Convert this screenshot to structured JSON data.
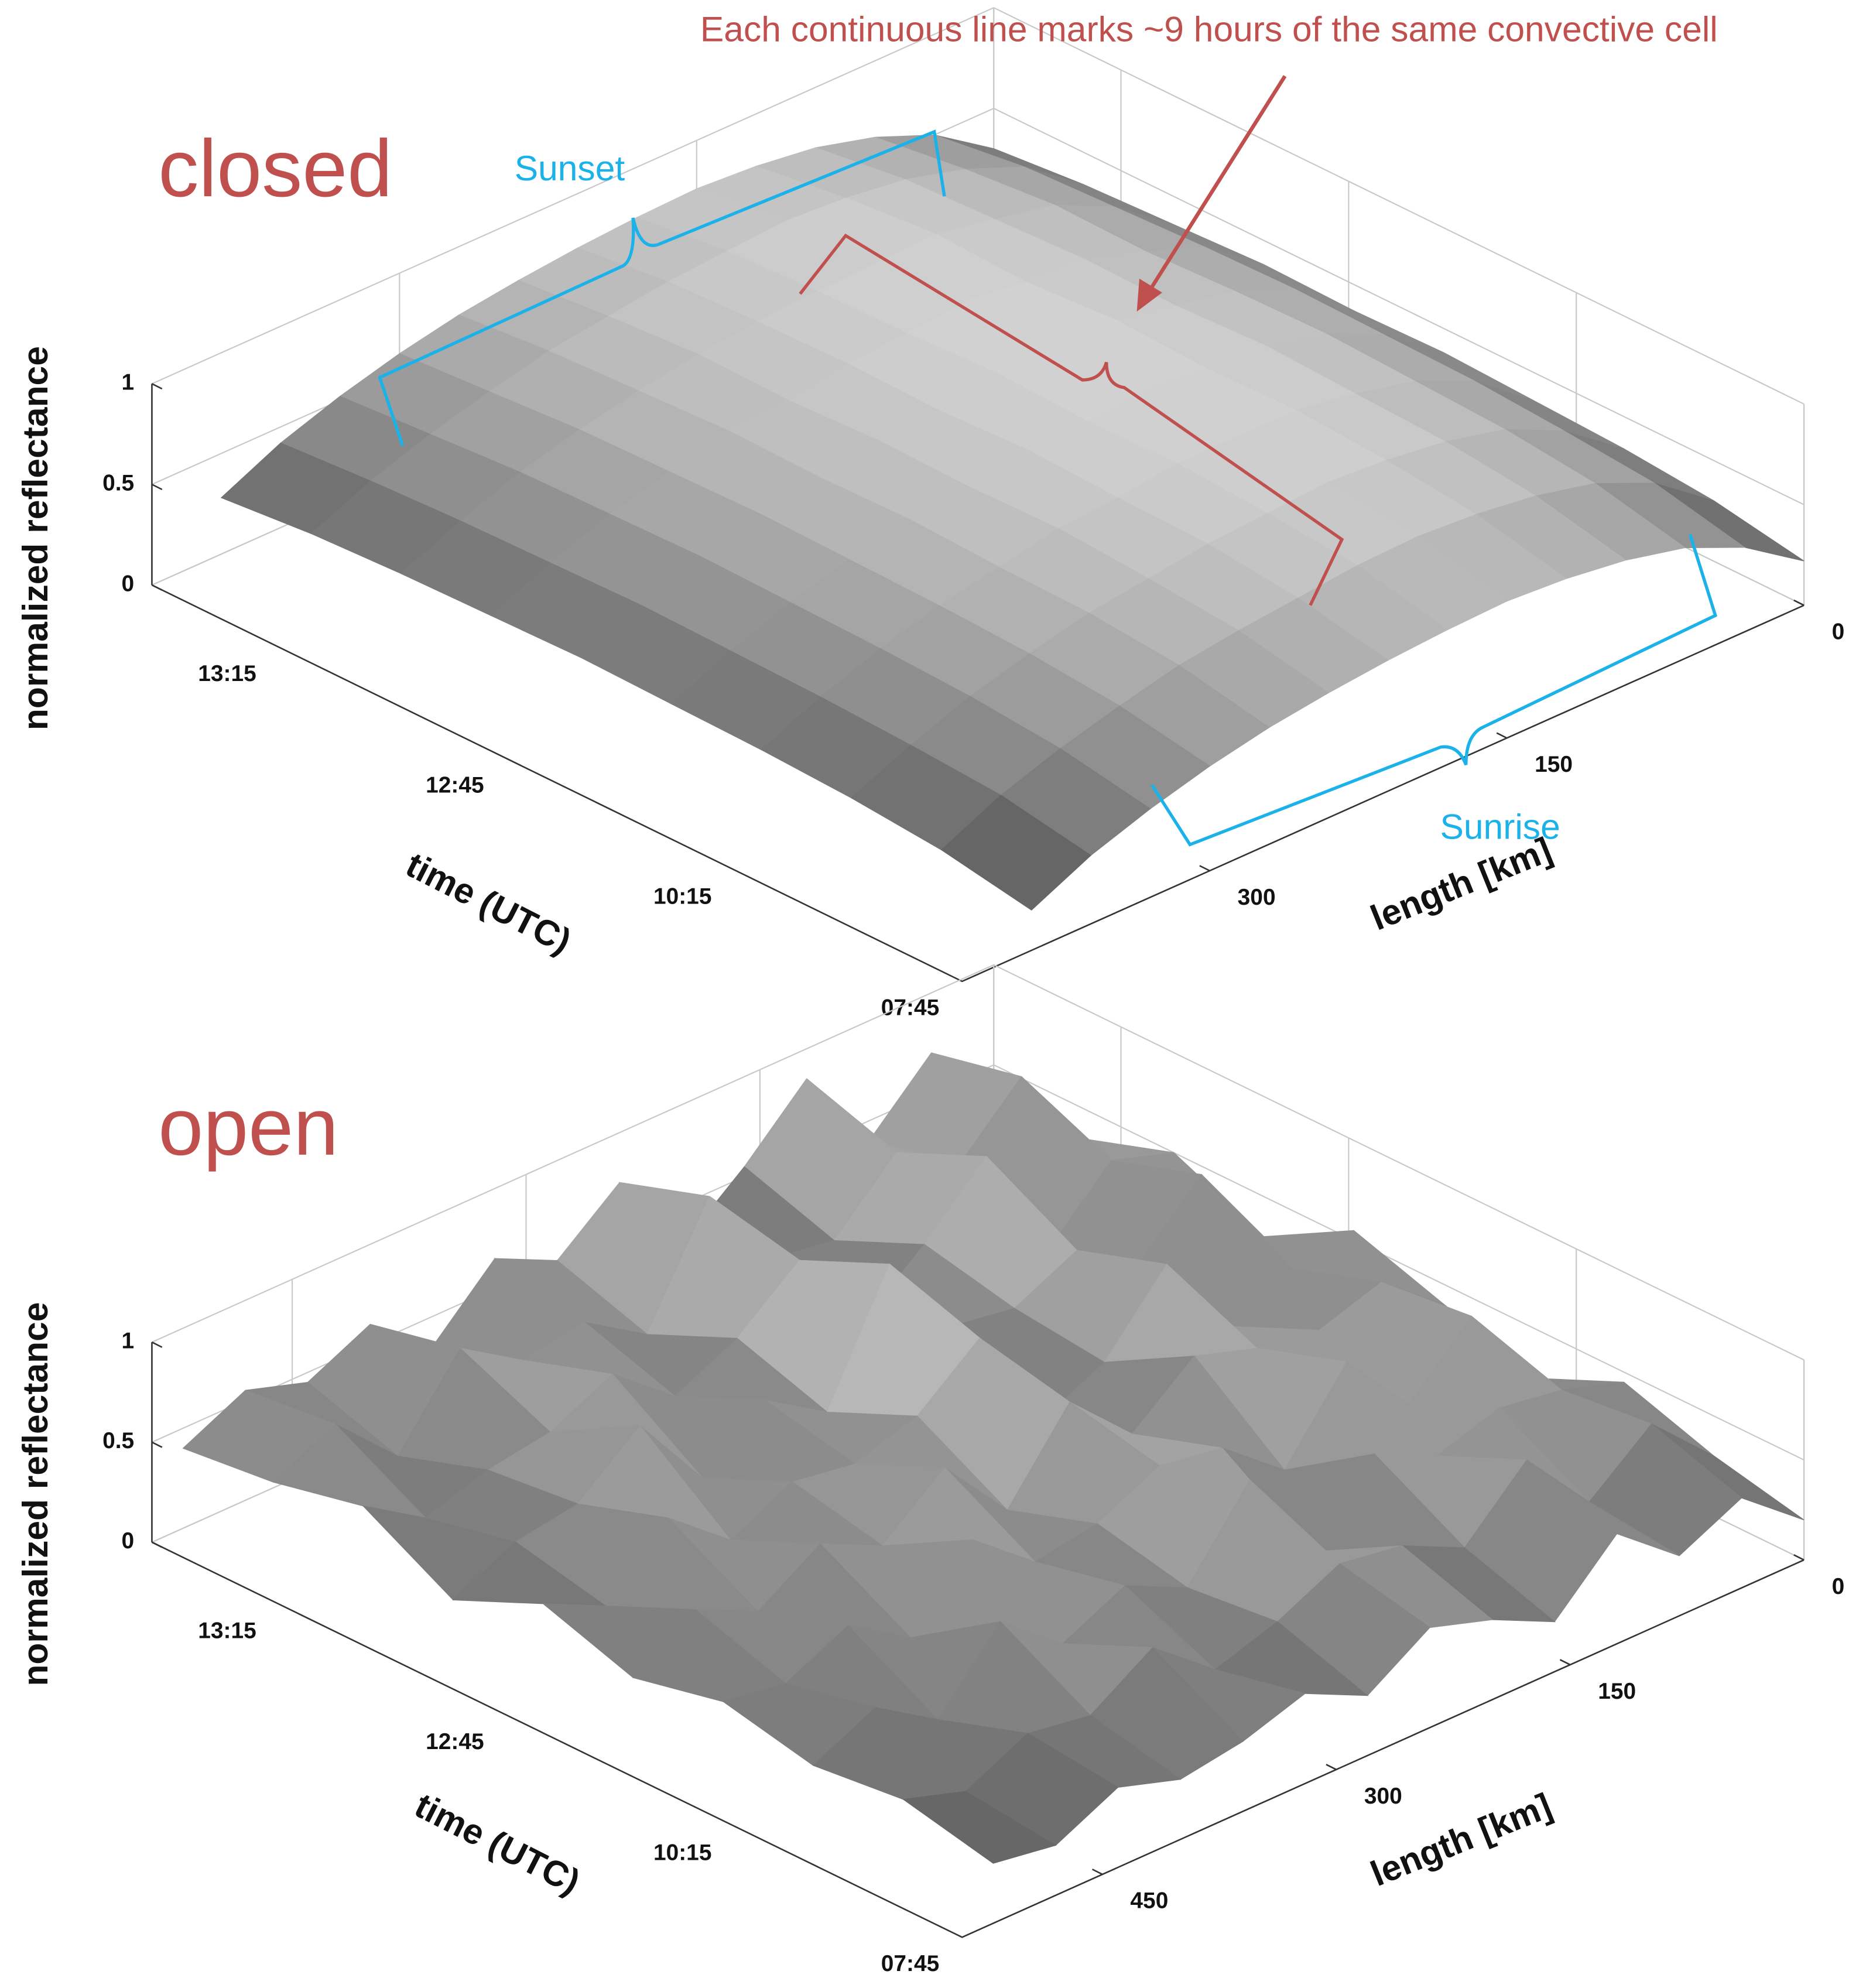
{
  "chart_data": [
    {
      "type": "surface",
      "title": "closed",
      "title_color": "#c0504d",
      "annotations": [
        {
          "text": "Each continuous line marks ~9 hours of the same convective cell",
          "color": "#c0504d"
        },
        {
          "text": "Sunset",
          "color": "#1ab2e8"
        },
        {
          "text": "Sunrise",
          "color": "#1ab2e8"
        }
      ],
      "xlabel": "length [km]",
      "ylabel": "time (UTC)",
      "zlabel": "normalized reflectance",
      "time_ticks": [
        "13:15",
        "12:45",
        "10:15",
        "07:45"
      ],
      "xlim": [
        0,
        425
      ],
      "xticks": [
        0,
        150,
        300
      ],
      "zlim": [
        0,
        1
      ],
      "zticks": [
        0,
        0.5,
        1
      ],
      "colormap": "gray",
      "grid": true,
      "x": [
        0,
        30,
        60,
        90,
        120,
        150,
        180,
        210,
        240,
        270,
        300,
        330,
        360,
        390
      ],
      "z": [
        [
          0.3,
          0.5,
          0.62,
          0.7,
          0.74,
          0.76,
          0.75,
          0.73,
          0.7,
          0.66,
          0.6,
          0.52,
          0.42,
          0.28
        ],
        [
          0.34,
          0.56,
          0.68,
          0.76,
          0.8,
          0.82,
          0.8,
          0.78,
          0.74,
          0.7,
          0.63,
          0.55,
          0.45,
          0.32
        ],
        [
          0.36,
          0.58,
          0.72,
          0.78,
          0.84,
          0.83,
          0.82,
          0.8,
          0.77,
          0.72,
          0.66,
          0.58,
          0.47,
          0.34
        ],
        [
          0.38,
          0.6,
          0.71,
          0.8,
          0.82,
          0.86,
          0.83,
          0.81,
          0.76,
          0.74,
          0.67,
          0.59,
          0.48,
          0.35
        ],
        [
          0.37,
          0.61,
          0.73,
          0.79,
          0.85,
          0.84,
          0.85,
          0.8,
          0.78,
          0.73,
          0.68,
          0.6,
          0.49,
          0.36
        ],
        [
          0.38,
          0.6,
          0.74,
          0.81,
          0.83,
          0.86,
          0.83,
          0.82,
          0.77,
          0.74,
          0.67,
          0.59,
          0.48,
          0.35
        ],
        [
          0.36,
          0.59,
          0.72,
          0.79,
          0.84,
          0.84,
          0.84,
          0.8,
          0.78,
          0.72,
          0.66,
          0.58,
          0.47,
          0.34
        ],
        [
          0.34,
          0.56,
          0.7,
          0.77,
          0.81,
          0.83,
          0.81,
          0.79,
          0.75,
          0.71,
          0.64,
          0.56,
          0.45,
          0.32
        ],
        [
          0.3,
          0.52,
          0.65,
          0.72,
          0.76,
          0.78,
          0.77,
          0.74,
          0.71,
          0.67,
          0.6,
          0.52,
          0.42,
          0.28
        ],
        [
          0.22,
          0.42,
          0.55,
          0.62,
          0.66,
          0.68,
          0.67,
          0.65,
          0.62,
          0.58,
          0.52,
          0.44,
          0.34,
          0.2
        ]
      ]
    },
    {
      "type": "surface",
      "title": "open",
      "title_color": "#c0504d",
      "xlabel": "length [km]",
      "ylabel": "time (UTC)",
      "zlabel": "normalized reflectance",
      "time_ticks": [
        "13:15",
        "12:45",
        "10:15",
        "07:45"
      ],
      "xlim": [
        0,
        540
      ],
      "xticks": [
        0,
        150,
        300,
        450
      ],
      "zlim": [
        0,
        1
      ],
      "zticks": [
        0,
        0.5,
        1
      ],
      "colormap": "gray",
      "grid": true,
      "x": [
        0,
        40,
        80,
        120,
        160,
        200,
        240,
        280,
        320,
        360,
        400,
        440,
        480,
        520
      ],
      "z": [
        [
          0.45,
          0.7,
          0.4,
          0.85,
          0.55,
          0.3,
          0.75,
          0.5,
          0.65,
          0.35,
          0.6,
          0.45,
          0.55,
          0.4
        ],
        [
          0.35,
          0.8,
          0.5,
          0.7,
          0.4,
          0.45,
          0.9,
          0.35,
          0.55,
          0.5,
          0.7,
          0.3,
          0.6,
          0.45
        ],
        [
          0.5,
          0.6,
          0.3,
          0.9,
          0.6,
          0.35,
          0.8,
          0.55,
          0.4,
          0.65,
          0.5,
          0.45,
          0.35,
          0.55
        ],
        [
          0.3,
          0.75,
          0.45,
          0.65,
          0.5,
          0.55,
          1.0,
          0.4,
          0.6,
          0.35,
          0.75,
          0.5,
          0.45,
          0.3
        ],
        [
          0.55,
          0.5,
          0.35,
          0.8,
          0.45,
          0.3,
          0.85,
          0.6,
          0.5,
          0.55,
          0.4,
          0.65,
          0.35,
          0.5
        ],
        [
          0.4,
          0.65,
          0.55,
          0.6,
          0.7,
          0.45,
          0.75,
          0.35,
          0.7,
          0.45,
          0.6,
          0.4,
          0.55,
          0.35
        ],
        [
          0.25,
          0.7,
          0.4,
          0.75,
          0.35,
          0.6,
          0.65,
          0.5,
          0.45,
          0.7,
          0.35,
          0.55,
          0.4,
          0.45
        ],
        [
          0.45,
          0.55,
          0.6,
          0.5,
          0.65,
          0.3,
          0.8,
          0.4,
          0.55,
          0.4,
          0.65,
          0.3,
          0.5,
          0.35
        ],
        [
          0.3,
          0.6,
          0.35,
          0.7,
          0.4,
          0.55,
          0.6,
          0.45,
          0.35,
          0.6,
          0.4,
          0.45,
          0.3,
          0.4
        ],
        [
          0.2,
          0.45,
          0.3,
          0.55,
          0.25,
          0.4,
          0.5,
          0.3,
          0.45,
          0.35,
          0.3,
          0.4,
          0.25,
          0.3
        ]
      ]
    }
  ]
}
